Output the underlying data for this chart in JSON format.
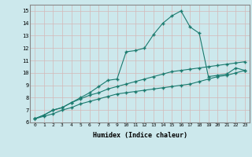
{
  "xlabel": "Humidex (Indice chaleur)",
  "background_color": "#cce8ec",
  "grid_color": "#b0d4d8",
  "line_color": "#1a7a6e",
  "xlim": [
    -0.5,
    23.5
  ],
  "ylim": [
    6,
    15.5
  ],
  "xticks": [
    0,
    1,
    2,
    3,
    4,
    5,
    6,
    7,
    8,
    9,
    10,
    11,
    12,
    13,
    14,
    15,
    16,
    17,
    18,
    19,
    20,
    21,
    22,
    23
  ],
  "yticks": [
    6,
    7,
    8,
    9,
    10,
    11,
    12,
    13,
    14,
    15
  ],
  "line1_x": [
    0,
    1,
    2,
    3,
    4,
    5,
    6,
    7,
    8,
    9,
    10,
    11,
    12,
    13,
    14,
    15,
    16,
    17,
    18,
    19,
    20,
    21,
    22,
    23
  ],
  "line1_y": [
    6.3,
    6.5,
    6.7,
    7.0,
    7.2,
    7.5,
    7.7,
    7.9,
    8.1,
    8.3,
    8.4,
    8.5,
    8.6,
    8.7,
    8.8,
    8.9,
    9.0,
    9.1,
    9.3,
    9.5,
    9.7,
    9.8,
    10.0,
    10.2
  ],
  "line2_x": [
    0,
    1,
    2,
    3,
    4,
    5,
    6,
    7,
    8,
    9,
    10,
    11,
    12,
    13,
    14,
    15,
    16,
    17,
    18,
    19,
    20,
    21,
    22,
    23
  ],
  "line2_y": [
    6.3,
    6.6,
    7.0,
    7.2,
    7.6,
    7.9,
    8.2,
    8.4,
    8.7,
    8.9,
    9.1,
    9.3,
    9.5,
    9.7,
    9.9,
    10.1,
    10.2,
    10.3,
    10.4,
    10.5,
    10.6,
    10.7,
    10.8,
    10.9
  ],
  "line3_x": [
    0,
    1,
    2,
    3,
    4,
    5,
    6,
    7,
    8,
    9,
    10,
    11,
    12,
    13,
    14,
    15,
    16,
    17,
    18,
    19,
    20,
    21,
    22,
    23
  ],
  "line3_y": [
    6.3,
    6.6,
    7.0,
    7.2,
    7.6,
    8.0,
    8.4,
    8.9,
    9.4,
    9.5,
    11.7,
    11.8,
    12.0,
    13.1,
    14.0,
    14.6,
    15.0,
    13.7,
    13.2,
    9.7,
    9.8,
    9.9,
    10.4,
    10.2
  ]
}
